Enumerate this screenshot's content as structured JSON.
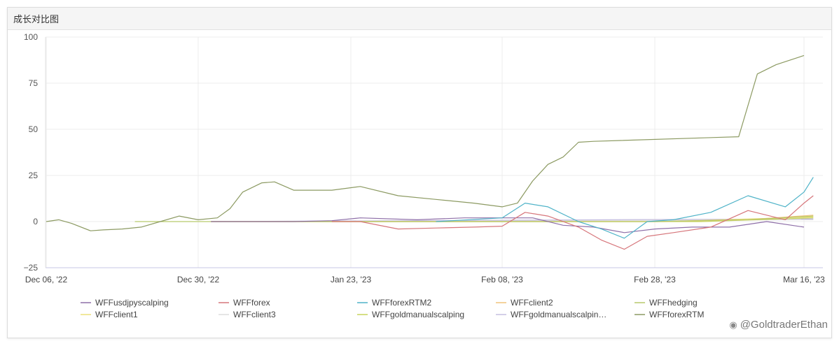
{
  "panel": {
    "title": "成长对比图"
  },
  "watermark": {
    "icon": "weibo-icon",
    "text": "@GoldtraderEthan"
  },
  "chart_data": {
    "type": "line",
    "title": "成长对比图",
    "xlabel": "",
    "ylabel": "",
    "ylim": [
      -25,
      100
    ],
    "yticks": [
      100,
      75,
      50,
      25,
      0,
      -25
    ],
    "xlim": [
      "2022-12-06",
      "2023-03-17"
    ],
    "xticks": [
      {
        "date": "2022-12-06",
        "label": "Dec 06, '22"
      },
      {
        "date": "2022-12-30",
        "label": "Dec 30, '22"
      },
      {
        "date": "2023-01-23",
        "label": "Jan 23, '23"
      },
      {
        "date": "2023-02-08",
        "label": "Feb 08, '23"
      },
      {
        "date": "2023-02-28",
        "label": "Feb 28, '23"
      },
      {
        "date": "2023-03-16",
        "label": "Mar 16, '23"
      }
    ],
    "grid": true,
    "legend_position": "bottom",
    "series": [
      {
        "name": "WFFusdjpyscalping",
        "color": "#8e6fa8",
        "x": [
          "2023-01-01",
          "2023-01-14",
          "2023-01-20",
          "2023-01-24",
          "2023-01-30",
          "2023-02-04",
          "2023-02-08",
          "2023-02-12",
          "2023-02-16",
          "2023-02-20",
          "2023-02-24",
          "2023-02-28",
          "2023-03-04",
          "2023-03-08",
          "2023-03-12",
          "2023-03-16"
        ],
        "y": [
          0,
          0,
          0.5,
          2,
          1,
          2,
          2,
          2,
          -2,
          -3,
          -6,
          -4,
          -3,
          -3,
          0,
          -3
        ]
      },
      {
        "name": "WFFforex",
        "color": "#d6757a",
        "x": [
          "2023-01-20",
          "2023-01-24",
          "2023-01-28",
          "2023-02-01",
          "2023-02-05",
          "2023-02-08",
          "2023-02-11",
          "2023-02-14",
          "2023-02-18",
          "2023-02-21",
          "2023-02-24",
          "2023-02-27",
          "2023-03-02",
          "2023-03-06",
          "2023-03-10",
          "2023-03-14",
          "2023-03-16",
          "2023-03-17"
        ],
        "y": [
          0,
          0,
          -4,
          -3.5,
          -3,
          -2.5,
          5,
          3,
          -3,
          -10,
          -15,
          -8,
          -6,
          -3,
          6,
          1,
          10,
          14
        ]
      },
      {
        "name": "WFFforexRTM2",
        "color": "#4fb3c8",
        "x": [
          "2023-02-01",
          "2023-02-08",
          "2023-02-11",
          "2023-02-14",
          "2023-02-18",
          "2023-02-21",
          "2023-02-24",
          "2023-02-27",
          "2023-03-02",
          "2023-03-06",
          "2023-03-10",
          "2023-03-14",
          "2023-03-16",
          "2023-03-17"
        ],
        "y": [
          0,
          2,
          10,
          8,
          0,
          -4,
          -9,
          0,
          1,
          5,
          14,
          8,
          16,
          24
        ]
      },
      {
        "name": "WFFclient2",
        "color": "#f0c27b",
        "x": [
          "2023-01-01",
          "2023-02-28",
          "2023-03-10",
          "2023-03-17"
        ],
        "y": [
          0,
          0,
          1,
          3.5
        ]
      },
      {
        "name": "WFFhedging",
        "color": "#b7c96b",
        "x": [
          "2022-12-20",
          "2023-02-28",
          "2023-03-10",
          "2023-03-17"
        ],
        "y": [
          0,
          0,
          1,
          3
        ]
      },
      {
        "name": "WFFclient1",
        "color": "#ece07a",
        "x": [
          "2023-01-01",
          "2023-03-01",
          "2023-03-17"
        ],
        "y": [
          0,
          0,
          2.5
        ]
      },
      {
        "name": "WFFclient3",
        "color": "#dddddd",
        "x": [
          "2023-01-01",
          "2023-03-17"
        ],
        "y": [
          0,
          1
        ]
      },
      {
        "name": "WFFgoldmanualscalping",
        "color": "#c9d45c",
        "x": [
          "2023-01-01",
          "2023-03-05",
          "2023-03-17"
        ],
        "y": [
          0,
          0,
          2
        ]
      },
      {
        "name": "WFFgoldmanualscalpin…",
        "color": "#c5bfe0",
        "x": [
          "2023-01-01",
          "2023-03-17"
        ],
        "y": [
          0,
          1.5
        ]
      },
      {
        "name": "WFFforexRTM",
        "color": "#8c9a62",
        "x": [
          "2022-12-06",
          "2022-12-08",
          "2022-12-10",
          "2022-12-13",
          "2022-12-15",
          "2022-12-18",
          "2022-12-21",
          "2022-12-24",
          "2022-12-27",
          "2022-12-30",
          "2023-01-02",
          "2023-01-04",
          "2023-01-06",
          "2023-01-09",
          "2023-01-11",
          "2023-01-14",
          "2023-01-18",
          "2023-01-20",
          "2023-01-24",
          "2023-01-28",
          "2023-02-01",
          "2023-02-05",
          "2023-02-08",
          "2023-02-10",
          "2023-02-12",
          "2023-02-14",
          "2023-02-16",
          "2023-02-18",
          "2023-02-20",
          "2023-03-09",
          "2023-03-11",
          "2023-03-13",
          "2023-03-16"
        ],
        "y": [
          0,
          1,
          -1,
          -5,
          -4.5,
          -4,
          -3,
          0,
          3,
          1,
          2,
          7,
          16,
          21,
          21.5,
          17,
          17,
          17,
          19,
          14,
          12,
          10,
          8,
          10,
          22,
          31,
          35,
          43,
          43.5,
          46,
          80,
          85,
          90
        ]
      }
    ]
  }
}
